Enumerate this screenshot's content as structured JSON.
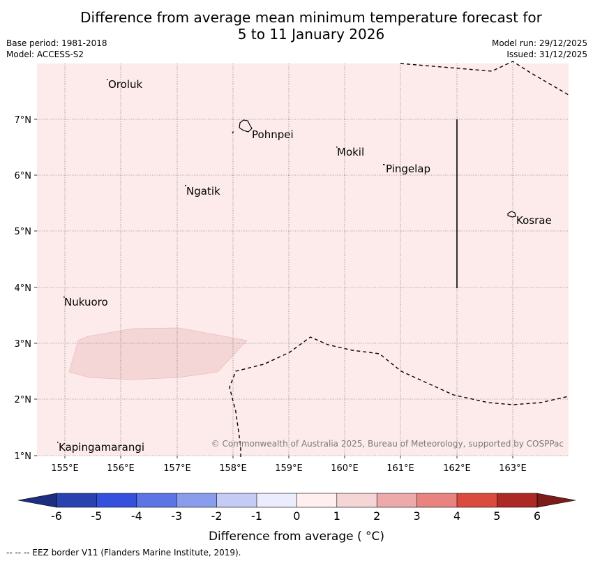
{
  "title": {
    "line1": "Difference from average mean minimum temperature forecast for",
    "line2": "5 to 11 January 2026"
  },
  "meta_left": {
    "base_period": "Base period: 1981-2018",
    "model": "Model: ACCESS-S2"
  },
  "meta_right": {
    "model_run": "Model run: 29/12/2025",
    "issued": "Issued: 31/12/2025"
  },
  "map": {
    "lon_range": [
      154.5,
      164.0
    ],
    "lat_range": [
      1.0,
      8.0
    ],
    "lon_ticks": [
      "155°E",
      "156°E",
      "157°E",
      "158°E",
      "159°E",
      "160°E",
      "161°E",
      "162°E",
      "163°E"
    ],
    "lat_ticks": [
      "1°N",
      "2°N",
      "3°N",
      "4°N",
      "5°N",
      "6°N",
      "7°N"
    ],
    "background_color": "#fcebea",
    "anomaly_patch_color": "#f4d6d6",
    "places": [
      {
        "name": "Oroluk"
      },
      {
        "name": "Pohnpei"
      },
      {
        "name": "Mokil"
      },
      {
        "name": "Pingelap"
      },
      {
        "name": "Ngatik"
      },
      {
        "name": "Kosrae"
      },
      {
        "name": "Nukuoro"
      },
      {
        "name": "Kapingamarangi"
      }
    ],
    "copyright": "© Commonwealth of Australia 2025, Bureau of Meteorology, supported by COSPPac"
  },
  "colorbar": {
    "ticks": [
      "-6",
      "-5",
      "-4",
      "-3",
      "-2",
      "-1",
      "0",
      "1",
      "2",
      "3",
      "4",
      "5",
      "6"
    ],
    "colors": [
      "#2a41b0",
      "#3550dc",
      "#5c74e4",
      "#8a9ded",
      "#c4cbf5",
      "#ecedfc",
      "#fff0ef",
      "#f5d5d5",
      "#eeaaaa",
      "#e98380",
      "#db4a3e",
      "#ad2a24"
    ],
    "extend_low_color": "#1d2e7e",
    "extend_high_color": "#7c1b17",
    "label": "Difference from average ( °C)"
  },
  "footer": "-- -- -- EEZ border V11 (Flanders Marine Institute, 2019)."
}
